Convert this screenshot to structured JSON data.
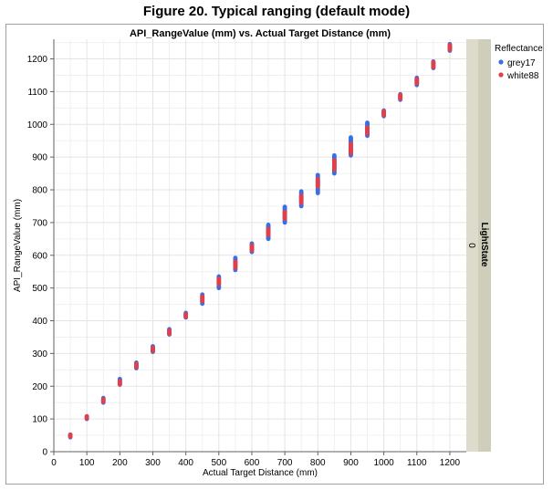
{
  "figure_title": "Figure 20. Typical ranging (default mode)",
  "colors": {
    "grey17": "#3c6ee0",
    "white88": "#e0404c",
    "facet_strip": "#dddccc",
    "grid": "#e4e4e4"
  },
  "chart_data": {
    "type": "scatter",
    "title": "API_RangeValue (mm) vs. Actual Target Distance (mm)",
    "xlabel": "Actual Target Distance (mm)",
    "ylabel": "API_RangeValue (mm)",
    "xlim": [
      0,
      1250
    ],
    "ylim": [
      0,
      1260
    ],
    "xticks": [
      0,
      100,
      200,
      300,
      400,
      500,
      600,
      700,
      800,
      900,
      1000,
      1100,
      1200
    ],
    "yticks": [
      0,
      100,
      200,
      300,
      400,
      500,
      600,
      700,
      800,
      900,
      1000,
      1100,
      1200
    ],
    "grid": true,
    "legend_title": "Reflectance",
    "legend_position": "right",
    "facet_label": "LightState",
    "facet_value": "0",
    "series": [
      {
        "name": "grey17",
        "points": [
          {
            "x": 50,
            "min": 44,
            "max": 52
          },
          {
            "x": 100,
            "min": 100,
            "max": 108
          },
          {
            "x": 150,
            "min": 150,
            "max": 164
          },
          {
            "x": 200,
            "min": 205,
            "max": 222
          },
          {
            "x": 250,
            "min": 255,
            "max": 272
          },
          {
            "x": 300,
            "min": 305,
            "max": 322
          },
          {
            "x": 350,
            "min": 358,
            "max": 374
          },
          {
            "x": 400,
            "min": 410,
            "max": 424
          },
          {
            "x": 450,
            "min": 452,
            "max": 480
          },
          {
            "x": 500,
            "min": 500,
            "max": 535
          },
          {
            "x": 550,
            "min": 555,
            "max": 592
          },
          {
            "x": 600,
            "min": 610,
            "max": 636
          },
          {
            "x": 650,
            "min": 650,
            "max": 693
          },
          {
            "x": 700,
            "min": 700,
            "max": 748
          },
          {
            "x": 750,
            "min": 750,
            "max": 795
          },
          {
            "x": 800,
            "min": 790,
            "max": 845
          },
          {
            "x": 850,
            "min": 850,
            "max": 905
          },
          {
            "x": 900,
            "min": 905,
            "max": 960
          },
          {
            "x": 950,
            "min": 965,
            "max": 1005
          },
          {
            "x": 1000,
            "min": 1025,
            "max": 1042
          },
          {
            "x": 1050,
            "min": 1075,
            "max": 1092
          },
          {
            "x": 1100,
            "min": 1120,
            "max": 1142
          },
          {
            "x": 1150,
            "min": 1172,
            "max": 1192
          },
          {
            "x": 1200,
            "min": 1225,
            "max": 1245
          }
        ]
      },
      {
        "name": "white88",
        "points": [
          {
            "x": 50,
            "min": 46,
            "max": 52
          },
          {
            "x": 100,
            "min": 102,
            "max": 108
          },
          {
            "x": 150,
            "min": 153,
            "max": 160
          },
          {
            "x": 200,
            "min": 205,
            "max": 215
          },
          {
            "x": 250,
            "min": 258,
            "max": 268
          },
          {
            "x": 300,
            "min": 308,
            "max": 318
          },
          {
            "x": 350,
            "min": 360,
            "max": 370
          },
          {
            "x": 400,
            "min": 412,
            "max": 420
          },
          {
            "x": 450,
            "min": 460,
            "max": 474
          },
          {
            "x": 500,
            "min": 512,
            "max": 528
          },
          {
            "x": 550,
            "min": 562,
            "max": 580
          },
          {
            "x": 600,
            "min": 615,
            "max": 630
          },
          {
            "x": 650,
            "min": 662,
            "max": 680
          },
          {
            "x": 700,
            "min": 712,
            "max": 732
          },
          {
            "x": 750,
            "min": 760,
            "max": 782
          },
          {
            "x": 800,
            "min": 810,
            "max": 832
          },
          {
            "x": 850,
            "min": 862,
            "max": 890
          },
          {
            "x": 900,
            "min": 912,
            "max": 940
          },
          {
            "x": 950,
            "min": 972,
            "max": 990
          },
          {
            "x": 1000,
            "min": 1028,
            "max": 1040
          },
          {
            "x": 1050,
            "min": 1078,
            "max": 1090
          },
          {
            "x": 1100,
            "min": 1125,
            "max": 1138
          },
          {
            "x": 1150,
            "min": 1175,
            "max": 1190
          },
          {
            "x": 1200,
            "min": 1228,
            "max": 1242
          }
        ]
      }
    ]
  }
}
